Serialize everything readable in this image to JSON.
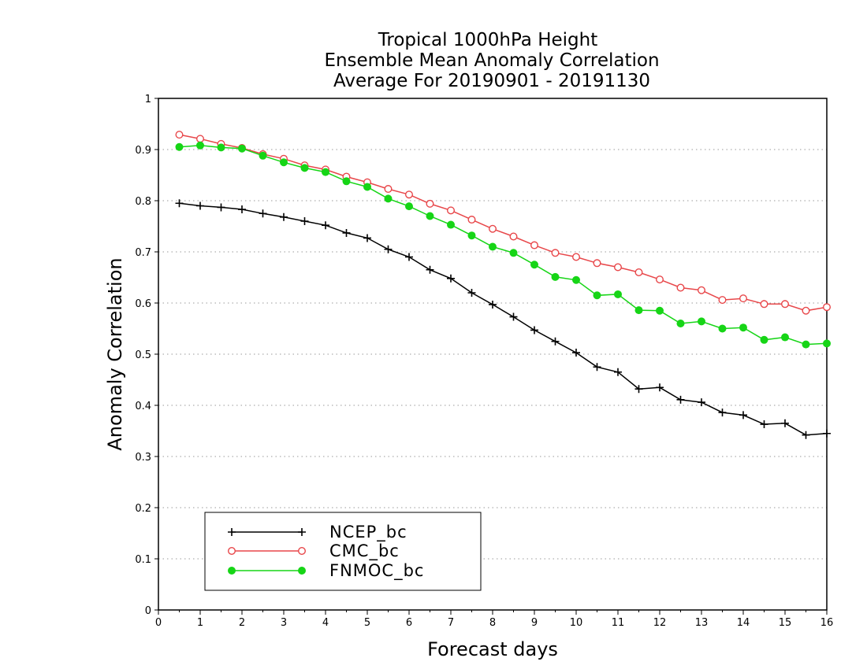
{
  "chart_data": {
    "type": "line",
    "title_lines": [
      "Tropical 1000hPa Height",
      "Ensemble Mean Anomaly Correlation",
      "Average For 20190901 - 20191130"
    ],
    "xlabel": "Forecast days",
    "ylabel": "Anomaly Correlation",
    "xlim": [
      0,
      16
    ],
    "ylim": [
      0,
      1
    ],
    "xticks": [
      0,
      1,
      2,
      3,
      4,
      5,
      6,
      7,
      8,
      9,
      10,
      11,
      12,
      13,
      14,
      15,
      16
    ],
    "yticks": [
      0,
      0.1,
      0.2,
      0.3,
      0.4,
      0.5,
      0.6,
      0.7,
      0.8,
      0.9,
      1
    ],
    "ytick_labels": [
      "0",
      "0.1",
      "0.2",
      "0.3",
      "0.4",
      "0.5",
      "0.6",
      "0.7",
      "0.8",
      "0.9",
      "1"
    ],
    "grid": "horizontal dotted",
    "legend_position": "bottom-left",
    "x": [
      0.5,
      1,
      1.5,
      2,
      2.5,
      3,
      3.5,
      4,
      4.5,
      5,
      5.5,
      6,
      6.5,
      7,
      7.5,
      8,
      8.5,
      9,
      9.5,
      10,
      10.5,
      11,
      11.5,
      12,
      12.5,
      13,
      13.5,
      14,
      14.5,
      15,
      15.5,
      16
    ],
    "series": [
      {
        "name": "NCEP_bc",
        "color": "#000000",
        "marker": "plus",
        "values": [
          0.795,
          0.79,
          0.787,
          0.783,
          0.775,
          0.768,
          0.76,
          0.752,
          0.737,
          0.727,
          0.705,
          0.69,
          0.665,
          0.648,
          0.62,
          0.597,
          0.573,
          0.547,
          0.525,
          0.503,
          0.475,
          0.465,
          0.432,
          0.435,
          0.411,
          0.406,
          0.386,
          0.381,
          0.363,
          0.365,
          0.342,
          0.345
        ]
      },
      {
        "name": "CMC_bc",
        "color": "#e8474a",
        "marker": "open-circle",
        "values": [
          0.929,
          0.921,
          0.911,
          0.903,
          0.891,
          0.882,
          0.869,
          0.861,
          0.847,
          0.836,
          0.823,
          0.812,
          0.794,
          0.781,
          0.763,
          0.745,
          0.73,
          0.713,
          0.698,
          0.69,
          0.678,
          0.67,
          0.66,
          0.646,
          0.63,
          0.625,
          0.606,
          0.609,
          0.598,
          0.598,
          0.585,
          0.592
        ]
      },
      {
        "name": "FNMOC_bc",
        "color": "#16d516",
        "marker": "filled-circle",
        "values": [
          0.905,
          0.908,
          0.904,
          0.902,
          0.888,
          0.875,
          0.864,
          0.856,
          0.838,
          0.827,
          0.804,
          0.789,
          0.77,
          0.753,
          0.732,
          0.71,
          0.698,
          0.675,
          0.651,
          0.645,
          0.615,
          0.617,
          0.586,
          0.585,
          0.56,
          0.564,
          0.55,
          0.552,
          0.528,
          0.533,
          0.519,
          0.521
        ]
      }
    ]
  }
}
